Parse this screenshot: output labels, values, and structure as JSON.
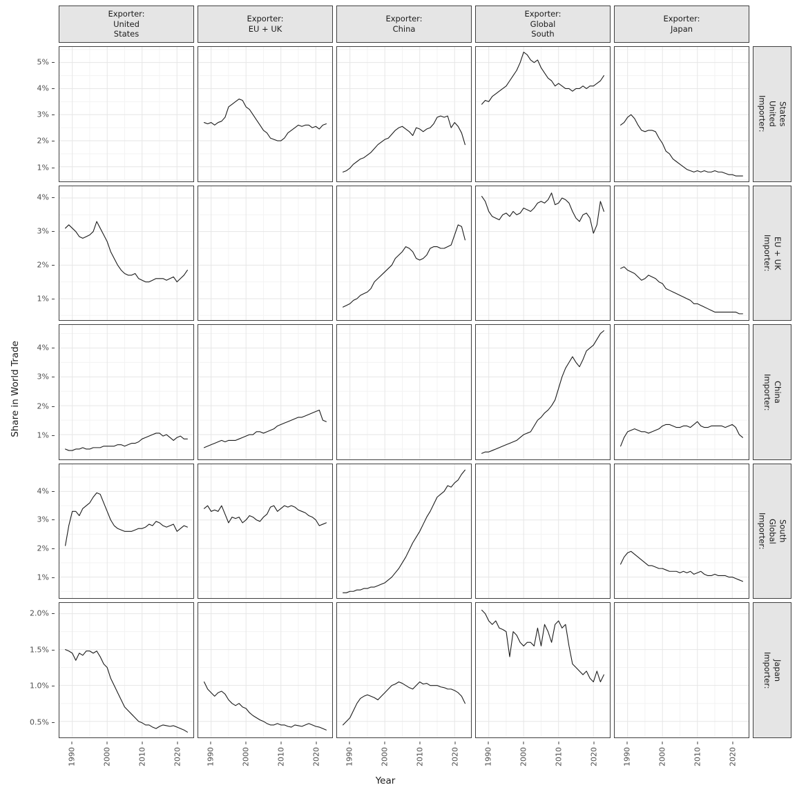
{
  "figure": {
    "y_axis_title": "Share in World Trade",
    "x_axis_title": "Year"
  },
  "facets": {
    "col_strips": [
      "Exporter:\nUnited\nStates",
      "Exporter:\nEU + UK",
      "Exporter:\nChina",
      "Exporter:\nGlobal\nSouth",
      "Exporter:\nJapan"
    ],
    "row_strips": [
      "Importer:\nUnited\nStates",
      "Importer:\nEU + UK",
      "Importer:\nChina",
      "Importer:\nGlobal\nSouth",
      "Importer:\nJapan"
    ]
  },
  "chart_data": {
    "type": "line",
    "title": "",
    "xlabel": "Year",
    "ylabel": "Share in World Trade",
    "legend": "none",
    "grid": "major+minor",
    "colors": {
      "line": "#1a1a1a",
      "grid_major": "#e6e6e6",
      "grid_minor": "#f3f3f3",
      "strip_bg": "#e5e5e5",
      "panel_border": "#3d3d3d",
      "tick_text": "#4d4d4d"
    },
    "x": [
      1988,
      1989,
      1990,
      1991,
      1992,
      1993,
      1994,
      1995,
      1996,
      1997,
      1998,
      1999,
      2000,
      2001,
      2002,
      2003,
      2004,
      2005,
      2006,
      2007,
      2008,
      2009,
      2010,
      2011,
      2012,
      2013,
      2014,
      2015,
      2016,
      2017,
      2018,
      2019,
      2020,
      2021,
      2022,
      2023
    ],
    "x_ticks": [
      1990,
      2000,
      2010,
      2020
    ],
    "x_range": [
      1986.3,
      2024.7
    ],
    "rows": [
      {
        "importer": "United States",
        "y_ticks": [
          "1%",
          "2%",
          "3%",
          "4%",
          "5%"
        ],
        "y_tick_values": [
          1,
          2,
          3,
          4,
          5
        ],
        "y_range": [
          0.45,
          5.6
        ],
        "panels": [
          {
            "exporter": "United States",
            "values": null
          },
          {
            "exporter": "EU + UK",
            "values": [
              2.7,
              2.65,
              2.7,
              2.6,
              2.7,
              2.75,
              2.9,
              3.3,
              3.4,
              3.5,
              3.6,
              3.55,
              3.3,
              3.2,
              3.0,
              2.8,
              2.6,
              2.4,
              2.3,
              2.1,
              2.05,
              2.0,
              2.0,
              2.1,
              2.3,
              2.4,
              2.5,
              2.6,
              2.55,
              2.6,
              2.6,
              2.5,
              2.55,
              2.45,
              2.6,
              2.65
            ]
          },
          {
            "exporter": "China",
            "values": [
              0.8,
              0.85,
              0.95,
              1.1,
              1.2,
              1.3,
              1.35,
              1.45,
              1.55,
              1.7,
              1.85,
              1.95,
              2.05,
              2.1,
              2.25,
              2.4,
              2.5,
              2.55,
              2.45,
              2.35,
              2.2,
              2.5,
              2.45,
              2.35,
              2.45,
              2.5,
              2.65,
              2.9,
              2.95,
              2.9,
              2.95,
              2.5,
              2.7,
              2.55,
              2.3,
              1.85
            ]
          },
          {
            "exporter": "Global South",
            "values": [
              3.4,
              3.55,
              3.5,
              3.7,
              3.8,
              3.9,
              4.0,
              4.1,
              4.3,
              4.5,
              4.7,
              5.0,
              5.4,
              5.3,
              5.1,
              5.0,
              5.1,
              4.8,
              4.6,
              4.4,
              4.3,
              4.1,
              4.2,
              4.1,
              4.0,
              4.0,
              3.9,
              4.0,
              4.0,
              4.1,
              4.0,
              4.1,
              4.1,
              4.2,
              4.3,
              4.5
            ]
          },
          {
            "exporter": "Japan",
            "values": [
              2.6,
              2.7,
              2.9,
              3.0,
              2.85,
              2.6,
              2.4,
              2.35,
              2.4,
              2.4,
              2.35,
              2.1,
              1.9,
              1.6,
              1.5,
              1.3,
              1.2,
              1.1,
              1.0,
              0.9,
              0.85,
              0.8,
              0.85,
              0.8,
              0.85,
              0.8,
              0.8,
              0.85,
              0.8,
              0.8,
              0.75,
              0.7,
              0.7,
              0.65,
              0.65,
              0.65
            ]
          }
        ]
      },
      {
        "importer": "EU + UK",
        "y_ticks": [
          "1%",
          "2%",
          "3%",
          "4%"
        ],
        "y_tick_values": [
          1,
          2,
          3,
          4
        ],
        "y_range": [
          0.35,
          4.35
        ],
        "panels": [
          {
            "exporter": "United States",
            "values": [
              3.1,
              3.2,
              3.1,
              3.0,
              2.85,
              2.8,
              2.85,
              2.9,
              3.0,
              3.3,
              3.1,
              2.9,
              2.7,
              2.4,
              2.2,
              2.0,
              1.85,
              1.75,
              1.7,
              1.7,
              1.75,
              1.6,
              1.55,
              1.5,
              1.5,
              1.55,
              1.6,
              1.6,
              1.6,
              1.55,
              1.6,
              1.65,
              1.5,
              1.6,
              1.7,
              1.85
            ]
          },
          {
            "exporter": "EU + UK",
            "values": null
          },
          {
            "exporter": "China",
            "values": [
              0.75,
              0.8,
              0.85,
              0.95,
              1.0,
              1.1,
              1.15,
              1.2,
              1.3,
              1.5,
              1.6,
              1.7,
              1.8,
              1.9,
              2.0,
              2.2,
              2.3,
              2.4,
              2.55,
              2.5,
              2.4,
              2.2,
              2.15,
              2.2,
              2.3,
              2.5,
              2.55,
              2.55,
              2.5,
              2.5,
              2.55,
              2.6,
              2.9,
              3.2,
              3.15,
              2.75
            ]
          },
          {
            "exporter": "Global South",
            "values": [
              4.05,
              3.9,
              3.6,
              3.45,
              3.4,
              3.35,
              3.5,
              3.55,
              3.45,
              3.6,
              3.5,
              3.55,
              3.7,
              3.65,
              3.6,
              3.7,
              3.85,
              3.9,
              3.85,
              3.95,
              4.15,
              3.8,
              3.85,
              4.0,
              3.95,
              3.85,
              3.6,
              3.4,
              3.3,
              3.5,
              3.55,
              3.4,
              2.95,
              3.2,
              3.9,
              3.6
            ]
          },
          {
            "exporter": "Japan",
            "values": [
              1.9,
              1.95,
              1.85,
              1.8,
              1.75,
              1.65,
              1.55,
              1.6,
              1.7,
              1.65,
              1.6,
              1.5,
              1.45,
              1.3,
              1.25,
              1.2,
              1.15,
              1.1,
              1.05,
              1.0,
              0.95,
              0.85,
              0.85,
              0.8,
              0.75,
              0.7,
              0.65,
              0.6,
              0.6,
              0.6,
              0.6,
              0.6,
              0.6,
              0.6,
              0.55,
              0.55
            ]
          }
        ]
      },
      {
        "importer": "China",
        "y_ticks": [
          "1%",
          "2%",
          "3%",
          "4%"
        ],
        "y_tick_values": [
          1,
          2,
          3,
          4
        ],
        "y_range": [
          0.15,
          4.8
        ],
        "panels": [
          {
            "exporter": "United States",
            "values": [
              0.5,
              0.45,
              0.45,
              0.5,
              0.5,
              0.55,
              0.5,
              0.5,
              0.55,
              0.55,
              0.55,
              0.6,
              0.6,
              0.6,
              0.6,
              0.65,
              0.65,
              0.6,
              0.65,
              0.7,
              0.7,
              0.75,
              0.85,
              0.9,
              0.95,
              1.0,
              1.05,
              1.05,
              0.95,
              1.0,
              0.9,
              0.8,
              0.9,
              0.95,
              0.85,
              0.85
            ]
          },
          {
            "exporter": "EU + UK",
            "values": [
              0.55,
              0.6,
              0.65,
              0.7,
              0.75,
              0.8,
              0.75,
              0.8,
              0.8,
              0.8,
              0.85,
              0.9,
              0.95,
              1.0,
              1.0,
              1.1,
              1.1,
              1.05,
              1.1,
              1.15,
              1.2,
              1.3,
              1.35,
              1.4,
              1.45,
              1.5,
              1.55,
              1.6,
              1.6,
              1.65,
              1.7,
              1.75,
              1.8,
              1.85,
              1.5,
              1.45
            ]
          },
          {
            "exporter": "China",
            "values": null
          },
          {
            "exporter": "Global South",
            "values": [
              0.35,
              0.4,
              0.4,
              0.45,
              0.5,
              0.55,
              0.6,
              0.65,
              0.7,
              0.75,
              0.8,
              0.9,
              1.0,
              1.05,
              1.1,
              1.3,
              1.5,
              1.6,
              1.75,
              1.85,
              2.0,
              2.2,
              2.6,
              3.0,
              3.3,
              3.5,
              3.7,
              3.5,
              3.35,
              3.6,
              3.9,
              4.0,
              4.1,
              4.3,
              4.5,
              4.6
            ]
          },
          {
            "exporter": "Japan",
            "values": [
              0.6,
              0.9,
              1.1,
              1.15,
              1.2,
              1.15,
              1.1,
              1.1,
              1.05,
              1.1,
              1.15,
              1.2,
              1.3,
              1.35,
              1.35,
              1.3,
              1.25,
              1.25,
              1.3,
              1.3,
              1.25,
              1.35,
              1.45,
              1.3,
              1.25,
              1.25,
              1.3,
              1.3,
              1.3,
              1.3,
              1.25,
              1.3,
              1.35,
              1.25,
              1.0,
              0.9
            ]
          }
        ]
      },
      {
        "importer": "Global South",
        "y_ticks": [
          "1%",
          "2%",
          "3%",
          "4%"
        ],
        "y_tick_values": [
          1,
          2,
          3,
          4
        ],
        "y_range": [
          0.25,
          4.95
        ],
        "panels": [
          {
            "exporter": "United States",
            "values": [
              2.1,
              2.8,
              3.3,
              3.3,
              3.15,
              3.4,
              3.5,
              3.6,
              3.8,
              3.95,
              3.9,
              3.6,
              3.3,
              3.0,
              2.8,
              2.7,
              2.65,
              2.6,
              2.6,
              2.6,
              2.65,
              2.7,
              2.7,
              2.75,
              2.85,
              2.8,
              2.95,
              2.9,
              2.8,
              2.75,
              2.8,
              2.85,
              2.6,
              2.7,
              2.8,
              2.75
            ]
          },
          {
            "exporter": "EU + UK",
            "values": [
              3.4,
              3.5,
              3.3,
              3.35,
              3.3,
              3.5,
              3.2,
              2.9,
              3.1,
              3.05,
              3.1,
              2.9,
              3.0,
              3.15,
              3.1,
              3.0,
              2.95,
              3.1,
              3.2,
              3.45,
              3.5,
              3.3,
              3.4,
              3.5,
              3.45,
              3.5,
              3.45,
              3.35,
              3.3,
              3.25,
              3.15,
              3.1,
              3.0,
              2.8,
              2.85,
              2.9
            ]
          },
          {
            "exporter": "China",
            "values": [
              0.45,
              0.45,
              0.5,
              0.5,
              0.55,
              0.55,
              0.6,
              0.6,
              0.65,
              0.65,
              0.7,
              0.75,
              0.8,
              0.9,
              1.0,
              1.15,
              1.3,
              1.5,
              1.7,
              1.95,
              2.2,
              2.4,
              2.6,
              2.85,
              3.1,
              3.3,
              3.55,
              3.8,
              3.9,
              4.0,
              4.2,
              4.15,
              4.3,
              4.4,
              4.6,
              4.75
            ]
          },
          {
            "exporter": "Global South",
            "values": null
          },
          {
            "exporter": "Japan",
            "values": [
              1.45,
              1.7,
              1.85,
              1.9,
              1.8,
              1.7,
              1.6,
              1.5,
              1.4,
              1.4,
              1.35,
              1.3,
              1.3,
              1.25,
              1.2,
              1.2,
              1.2,
              1.15,
              1.2,
              1.15,
              1.2,
              1.1,
              1.15,
              1.2,
              1.1,
              1.05,
              1.05,
              1.1,
              1.05,
              1.05,
              1.05,
              1.0,
              1.0,
              0.95,
              0.9,
              0.85
            ]
          }
        ]
      },
      {
        "importer": "Japan",
        "y_ticks": [
          "0.5%",
          "1.0%",
          "1.5%",
          "2.0%"
        ],
        "y_tick_values": [
          0.5,
          1.0,
          1.5,
          2.0
        ],
        "y_range": [
          0.28,
          2.15
        ],
        "panels": [
          {
            "exporter": "United States",
            "values": [
              1.5,
              1.48,
              1.45,
              1.35,
              1.45,
              1.42,
              1.48,
              1.48,
              1.45,
              1.48,
              1.4,
              1.3,
              1.25,
              1.1,
              1.0,
              0.9,
              0.8,
              0.7,
              0.65,
              0.6,
              0.55,
              0.5,
              0.48,
              0.45,
              0.45,
              0.42,
              0.4,
              0.43,
              0.45,
              0.44,
              0.43,
              0.44,
              0.42,
              0.4,
              0.38,
              0.35
            ]
          },
          {
            "exporter": "EU + UK",
            "values": [
              1.05,
              0.95,
              0.9,
              0.85,
              0.9,
              0.92,
              0.88,
              0.8,
              0.75,
              0.72,
              0.75,
              0.7,
              0.68,
              0.62,
              0.58,
              0.55,
              0.52,
              0.5,
              0.47,
              0.45,
              0.45,
              0.47,
              0.45,
              0.45,
              0.43,
              0.42,
              0.45,
              0.44,
              0.43,
              0.45,
              0.47,
              0.45,
              0.43,
              0.42,
              0.4,
              0.38
            ]
          },
          {
            "exporter": "China",
            "values": [
              0.45,
              0.5,
              0.55,
              0.65,
              0.75,
              0.82,
              0.85,
              0.87,
              0.85,
              0.83,
              0.8,
              0.85,
              0.9,
              0.95,
              1.0,
              1.02,
              1.05,
              1.03,
              1.0,
              0.97,
              0.95,
              1.0,
              1.05,
              1.02,
              1.03,
              1.0,
              1.0,
              1.0,
              0.98,
              0.97,
              0.95,
              0.95,
              0.93,
              0.9,
              0.85,
              0.75
            ]
          },
          {
            "exporter": "Global South",
            "values": [
              2.05,
              2.0,
              1.9,
              1.85,
              1.9,
              1.8,
              1.78,
              1.75,
              1.4,
              1.75,
              1.7,
              1.6,
              1.55,
              1.6,
              1.6,
              1.55,
              1.8,
              1.55,
              1.85,
              1.75,
              1.6,
              1.85,
              1.9,
              1.8,
              1.85,
              1.55,
              1.3,
              1.25,
              1.2,
              1.15,
              1.2,
              1.1,
              1.05,
              1.2,
              1.05,
              1.15
            ]
          },
          {
            "exporter": "Japan",
            "values": null
          }
        ]
      }
    ]
  }
}
